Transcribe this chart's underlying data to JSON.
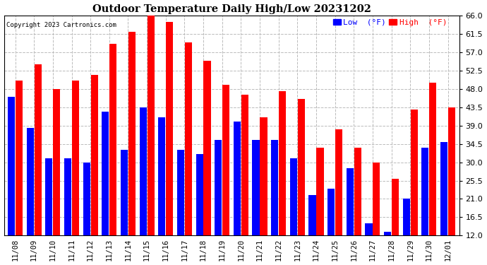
{
  "title": "Outdoor Temperature Daily High/Low 20231202",
  "copyright": "Copyright 2023 Cartronics.com",
  "legend_low": "Low  (°F)",
  "legend_high": "High  (°F)",
  "low_color": "#0000ff",
  "high_color": "#ff0000",
  "background_color": "#ffffff",
  "ylim": [
    12.0,
    66.0
  ],
  "ymin": 12.0,
  "yticks": [
    12.0,
    16.5,
    21.0,
    25.5,
    30.0,
    34.5,
    39.0,
    43.5,
    48.0,
    52.5,
    57.0,
    61.5,
    66.0
  ],
  "grid_color": "#bbbbbb",
  "dates": [
    "11/08",
    "11/09",
    "11/10",
    "11/11",
    "11/12",
    "11/13",
    "11/14",
    "11/15",
    "11/16",
    "11/17",
    "11/18",
    "11/19",
    "11/20",
    "11/21",
    "11/22",
    "11/23",
    "11/24",
    "11/25",
    "11/26",
    "11/27",
    "11/28",
    "11/29",
    "11/30",
    "12/01"
  ],
  "high_vals": [
    50.0,
    54.0,
    48.0,
    50.0,
    51.5,
    59.0,
    62.0,
    66.0,
    64.5,
    59.5,
    55.0,
    49.0,
    46.5,
    41.0,
    47.5,
    45.5,
    33.5,
    38.0,
    33.5,
    30.0,
    26.0,
    43.0,
    49.5,
    43.5
  ],
  "low_vals": [
    46.0,
    38.5,
    31.0,
    31.0,
    30.0,
    42.5,
    33.0,
    43.5,
    41.0,
    33.0,
    32.0,
    35.5,
    40.0,
    35.5,
    35.5,
    31.0,
    22.0,
    23.5,
    28.5,
    15.0,
    13.0,
    21.0,
    33.5,
    35.0
  ]
}
